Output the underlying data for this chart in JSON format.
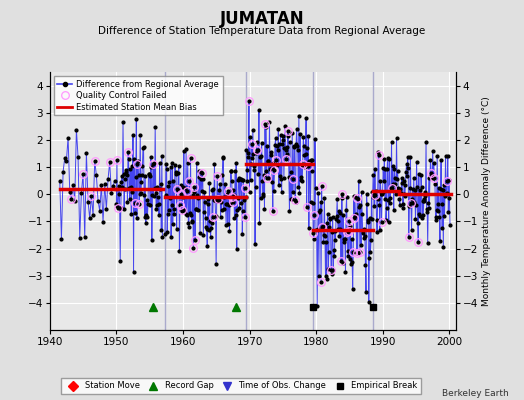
{
  "title": "JUMATAN",
  "subtitle": "Difference of Station Temperature Data from Regional Average",
  "ylabel_right": "Monthly Temperature Anomaly Difference (°C)",
  "credit": "Berkeley Earth",
  "xlim": [
    1940,
    2001
  ],
  "ylim": [
    -5,
    4.5
  ],
  "yticks": [
    -4,
    -3,
    -2,
    -1,
    0,
    1,
    2,
    3,
    4
  ],
  "xticks": [
    1940,
    1950,
    1960,
    1970,
    1980,
    1990,
    2000
  ],
  "background_color": "#e0e0e0",
  "plot_bg_color": "#e8e8e8",
  "grid_color": "#ffffff",
  "segments": [
    {
      "x_start": 1941.5,
      "x_end": 1950.0,
      "bias": 0.2,
      "n_per_year": 4,
      "noise": 1.0
    },
    {
      "x_start": 1950.0,
      "x_end": 1957.0,
      "bias": 0.2,
      "n_per_year": 12,
      "noise": 0.9
    },
    {
      "x_start": 1957.3,
      "x_end": 1969.5,
      "bias": -0.1,
      "n_per_year": 12,
      "noise": 0.9
    },
    {
      "x_start": 1969.5,
      "x_end": 1979.5,
      "bias": 1.1,
      "n_per_year": 12,
      "noise": 0.9
    },
    {
      "x_start": 1979.5,
      "x_end": 1988.5,
      "bias": -1.3,
      "n_per_year": 12,
      "noise": 0.9
    },
    {
      "x_start": 1988.5,
      "x_end": 1992.5,
      "bias": 0.1,
      "n_per_year": 12,
      "noise": 0.9
    },
    {
      "x_start": 1992.5,
      "x_end": 2000.2,
      "bias": 0.0,
      "n_per_year": 12,
      "noise": 0.9
    }
  ],
  "vertical_lines": [
    1957.3,
    1969.5,
    1979.5,
    1988.5
  ],
  "vertical_line_color": "#aaaacc",
  "record_gaps": [
    1955.5,
    1968.0
  ],
  "empirical_breaks": [
    1979.5,
    1988.5
  ],
  "record_gap_color": "#007700",
  "qc_fail_rate": 0.12,
  "seed": 17,
  "line_color": "#4444ee",
  "dot_color": "#000000",
  "qc_color": "#ff99ff",
  "bias_color": "#dd0000",
  "bias_linewidth": 2.5,
  "dot_size": 2.0,
  "line_width": 0.7,
  "marker_y": -4.15
}
